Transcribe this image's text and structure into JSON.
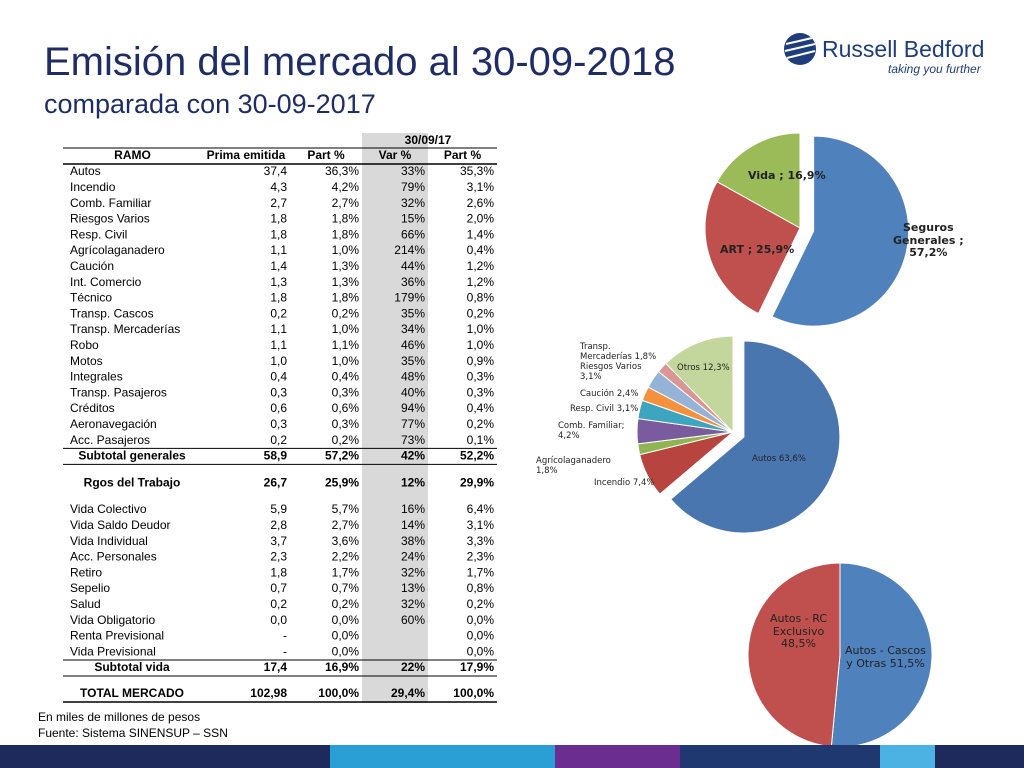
{
  "header": {
    "title": "Emisión del mercado al 30-09-2018",
    "subtitle": "comparada con 30-09-2017"
  },
  "logo": {
    "name": "Russell Bedford",
    "tagline": "taking you further"
  },
  "table": {
    "group_header": "30/09/17",
    "columns": [
      "RAMO",
      "Prima emitida",
      "Part %",
      "Var %",
      "Part %"
    ],
    "rows": [
      [
        "Autos",
        "37,4",
        "36,3%",
        "33%",
        "35,3%"
      ],
      [
        "Incendio",
        "4,3",
        "4,2%",
        "79%",
        "3,1%"
      ],
      [
        "Comb. Familiar",
        "2,7",
        "2,7%",
        "32%",
        "2,6%"
      ],
      [
        "Riesgos Varios",
        "1,8",
        "1,8%",
        "15%",
        "2,0%"
      ],
      [
        "Resp. Civil",
        "1,8",
        "1,8%",
        "66%",
        "1,4%"
      ],
      [
        "Agrícolaganadero",
        "1,1",
        "1,0%",
        "214%",
        "0,4%"
      ],
      [
        "Caución",
        "1,4",
        "1,3%",
        "44%",
        "1,2%"
      ],
      [
        "Int. Comercio",
        "1,3",
        "1,3%",
        "36%",
        "1,2%"
      ],
      [
        "Técnico",
        "1,8",
        "1,8%",
        "179%",
        "0,8%"
      ],
      [
        "Transp. Cascos",
        "0,2",
        "0,2%",
        "35%",
        "0,2%"
      ],
      [
        "Transp. Mercaderías",
        "1,1",
        "1,0%",
        "34%",
        "1,0%"
      ],
      [
        "Robo",
        "1,1",
        "1,1%",
        "46%",
        "1,0%"
      ],
      [
        "Motos",
        "1,0",
        "1,0%",
        "35%",
        "0,9%"
      ],
      [
        "Integrales",
        "0,4",
        "0,4%",
        "48%",
        "0,3%"
      ],
      [
        "Transp. Pasajeros",
        "0,3",
        "0,3%",
        "40%",
        "0,3%"
      ],
      [
        "Créditos",
        "0,6",
        "0,6%",
        "94%",
        "0,4%"
      ],
      [
        "Aeronavegación",
        "0,3",
        "0,3%",
        "77%",
        "0,2%"
      ],
      [
        "Acc. Pasajeros",
        "0,2",
        "0,2%",
        "73%",
        "0,1%"
      ],
      [
        "Subtotal generales",
        "58,9",
        "57,2%",
        "42%",
        "52,2%"
      ],
      [
        "Rgos del Trabajo",
        "26,7",
        "25,9%",
        "12%",
        "29,9%"
      ],
      [
        "Vida Colectivo",
        "5,9",
        "5,7%",
        "16%",
        "6,4%"
      ],
      [
        "Vida Saldo Deudor",
        "2,8",
        "2,7%",
        "14%",
        "3,1%"
      ],
      [
        "Vida Individual",
        "3,7",
        "3,6%",
        "38%",
        "3,3%"
      ],
      [
        "Acc. Personales",
        "2,3",
        "2,2%",
        "24%",
        "2,3%"
      ],
      [
        "Retiro",
        "1,8",
        "1,7%",
        "32%",
        "1,7%"
      ],
      [
        "Sepelio",
        "0,7",
        "0,7%",
        "13%",
        "0,8%"
      ],
      [
        "Salud",
        "0,2",
        "0,2%",
        "32%",
        "0,2%"
      ],
      [
        "Vida Obligatorio",
        "0,0",
        "0,0%",
        "60%",
        "0,0%"
      ],
      [
        "Renta Previsional",
        "-",
        "0,0%",
        null,
        "0,0%"
      ],
      [
        "Vida Previsional",
        "-",
        "0,0%",
        null,
        "0,0%"
      ],
      [
        "Subtotal vida",
        "17,4",
        "16,9%",
        "22%",
        "17,9%"
      ],
      [
        "TOTAL MERCADO",
        "102,98",
        "100,0%",
        "29,4%",
        "100,0%"
      ]
    ]
  },
  "footnotes": [
    "En miles de millones de pesos",
    "Fuente: Sistema SINENSUP – SSN"
  ],
  "chart_data": [
    {
      "type": "pie",
      "values": [
        57.2,
        25.9,
        16.9
      ],
      "value_labels": [
        "Seguros\nGenerales ;\n57,2%",
        "ART ; 25,9%",
        "Vida ; 16,9%"
      ],
      "colors": [
        "#4f81bd",
        "#c0504d",
        "#9bbb59"
      ]
    },
    {
      "type": "pie",
      "values": [
        63.6,
        7.4,
        1.8,
        4.2,
        3.1,
        2.4,
        3.1,
        1.8,
        12.3
      ],
      "value_labels": [
        "Autos 63,6%",
        "Incendio 7,4%",
        "Agrícolaganadero\n1,8%",
        "Comb. Familiar;\n4,2%",
        "Resp. Civil 3,1%",
        "Caución 2,4%",
        "Riesgos Varios\n3,1%",
        "Transp.\nMercaderías 1,8%",
        "Otros 12,3%"
      ],
      "colors": [
        "#4a76b0",
        "#b8443f",
        "#8fb552",
        "#7a5c9e",
        "#3da5c0",
        "#f5913e",
        "#95b3d7",
        "#d99694",
        "#c3d69b"
      ]
    },
    {
      "type": "pie",
      "values": [
        51.5,
        48.5
      ],
      "value_labels": [
        "Autos - Cascos\ny Otras 51,5%",
        "Autos - RC\nExclusivo\n48,5%"
      ],
      "colors": [
        "#4f81bd",
        "#c0504d"
      ]
    }
  ]
}
